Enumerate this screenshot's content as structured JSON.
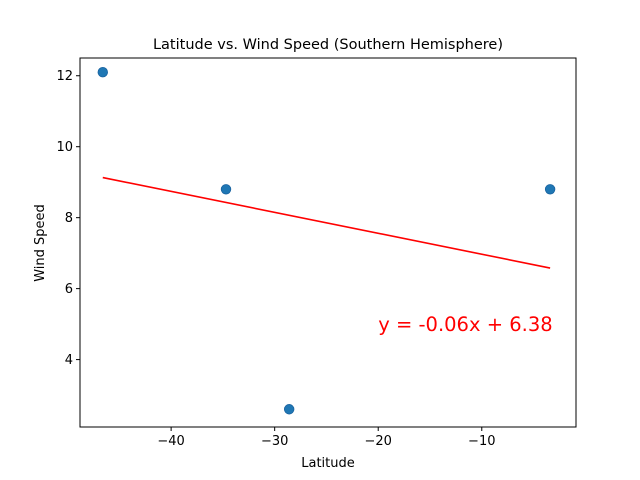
{
  "chart_data": {
    "type": "scatter",
    "title": "Latitude vs. Wind Speed (Southern Hemisphere)",
    "xlabel": "Latitude",
    "ylabel": "Wind Speed",
    "xlim": [
      -48.8,
      -0.9
    ],
    "ylim": [
      2.1,
      12.5
    ],
    "xticks": [
      -40,
      -30,
      -20,
      -10
    ],
    "yticks": [
      4,
      6,
      8,
      10,
      12
    ],
    "grid": false,
    "legend": "none",
    "points": [
      {
        "x": -46.6,
        "y": 12.1
      },
      {
        "x": -34.7,
        "y": 8.8
      },
      {
        "x": -28.6,
        "y": 2.6
      },
      {
        "x": -3.4,
        "y": 8.8
      }
    ],
    "point_color": "#1f77b4",
    "regression": {
      "slope": -0.06,
      "intercept": 6.38,
      "x_range": [
        -46.6,
        -3.4
      ],
      "y_range": [
        9.13,
        6.58
      ],
      "color": "#ff0000",
      "equation_label": "y = -0.06x + 6.38",
      "label_position": {
        "x": -20,
        "y": 5.0
      }
    }
  }
}
